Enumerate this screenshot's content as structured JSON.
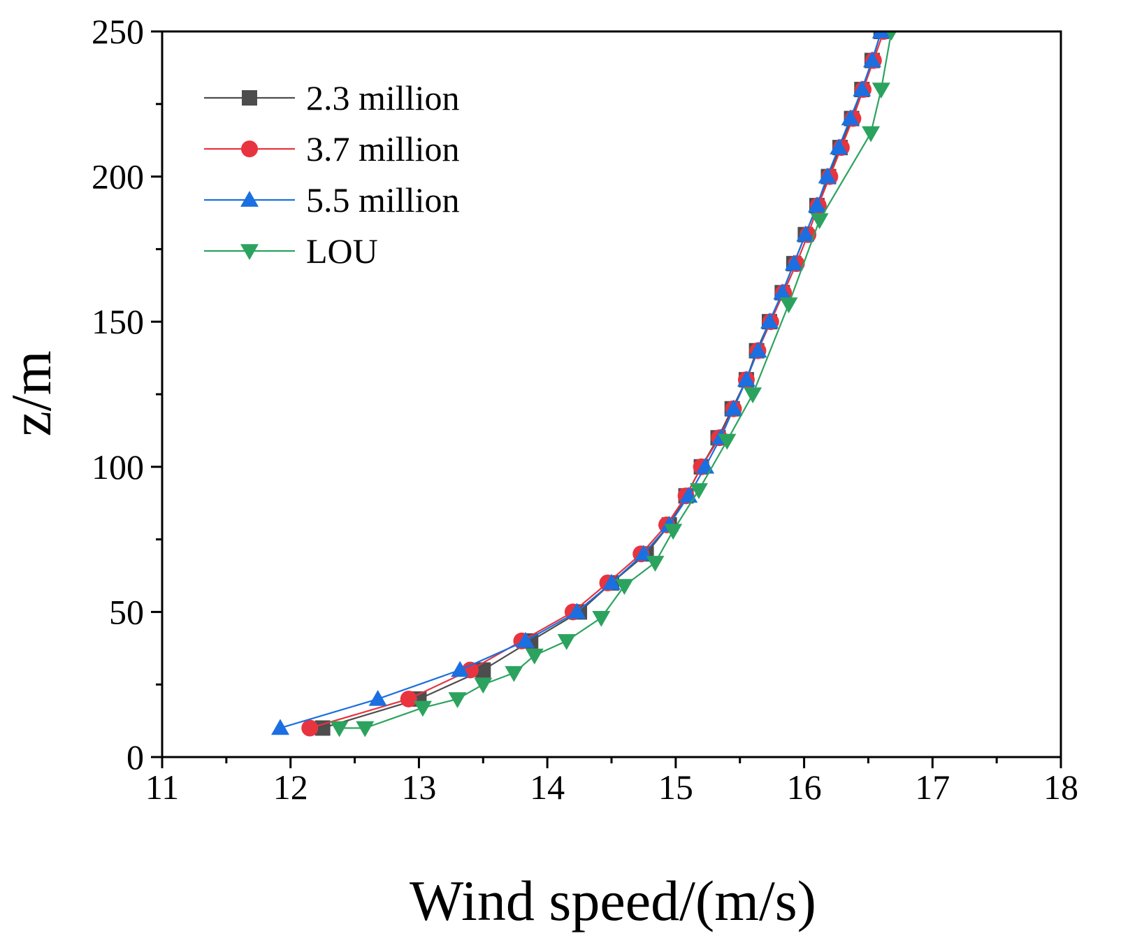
{
  "chart_data": {
    "type": "line",
    "title": "",
    "xlabel": "Wind speed/(m/s)",
    "ylabel": "z/m",
    "xlim": [
      11,
      18
    ],
    "ylim": [
      0,
      250
    ],
    "x_ticks": [
      11,
      12,
      13,
      14,
      15,
      16,
      17,
      18
    ],
    "y_ticks": [
      0,
      50,
      100,
      150,
      200,
      250
    ],
    "x_tick_labels": [
      "11",
      "12",
      "13",
      "14",
      "15",
      "16",
      "17",
      "18"
    ],
    "y_tick_labels": [
      "0",
      "50",
      "100",
      "150",
      "200",
      "250"
    ],
    "grid": false,
    "legend_position": "top-left",
    "series": [
      {
        "name": "2.3 million",
        "color": "#4d4d4d",
        "marker": "square",
        "points": [
          [
            12.25,
            10
          ],
          [
            13.0,
            20
          ],
          [
            13.5,
            30
          ],
          [
            13.87,
            40
          ],
          [
            14.25,
            50
          ],
          [
            14.5,
            60
          ],
          [
            14.77,
            70
          ],
          [
            14.95,
            80
          ],
          [
            15.08,
            90
          ],
          [
            15.2,
            100
          ],
          [
            15.33,
            110
          ],
          [
            15.44,
            120
          ],
          [
            15.55,
            130
          ],
          [
            15.63,
            140
          ],
          [
            15.73,
            150
          ],
          [
            15.83,
            160
          ],
          [
            15.92,
            170
          ],
          [
            16.01,
            180
          ],
          [
            16.1,
            190
          ],
          [
            16.19,
            200
          ],
          [
            16.28,
            210
          ],
          [
            16.37,
            220
          ],
          [
            16.45,
            230
          ],
          [
            16.53,
            240
          ],
          [
            16.6,
            250
          ]
        ]
      },
      {
        "name": "3.7 million",
        "color": "#e8343f",
        "marker": "circle",
        "points": [
          [
            12.15,
            10
          ],
          [
            12.92,
            20
          ],
          [
            13.4,
            30
          ],
          [
            13.8,
            40
          ],
          [
            14.2,
            50
          ],
          [
            14.47,
            60
          ],
          [
            14.73,
            70
          ],
          [
            14.93,
            80
          ],
          [
            15.08,
            90
          ],
          [
            15.2,
            100
          ],
          [
            15.34,
            110
          ],
          [
            15.45,
            120
          ],
          [
            15.55,
            130
          ],
          [
            15.64,
            140
          ],
          [
            15.74,
            150
          ],
          [
            15.84,
            160
          ],
          [
            15.94,
            170
          ],
          [
            16.03,
            180
          ],
          [
            16.11,
            190
          ],
          [
            16.2,
            200
          ],
          [
            16.29,
            210
          ],
          [
            16.38,
            220
          ],
          [
            16.46,
            230
          ],
          [
            16.54,
            240
          ],
          [
            16.62,
            250
          ]
        ]
      },
      {
        "name": "5.5 million",
        "color": "#1b6fe0",
        "marker": "triangle-up",
        "points": [
          [
            11.92,
            10
          ],
          [
            12.68,
            20
          ],
          [
            13.32,
            30
          ],
          [
            13.83,
            40
          ],
          [
            14.23,
            50
          ],
          [
            14.5,
            60
          ],
          [
            14.75,
            70
          ],
          [
            14.95,
            80
          ],
          [
            15.1,
            90
          ],
          [
            15.23,
            100
          ],
          [
            15.35,
            110
          ],
          [
            15.45,
            120
          ],
          [
            15.55,
            130
          ],
          [
            15.64,
            140
          ],
          [
            15.73,
            150
          ],
          [
            15.83,
            160
          ],
          [
            15.92,
            170
          ],
          [
            16.01,
            180
          ],
          [
            16.1,
            190
          ],
          [
            16.18,
            200
          ],
          [
            16.27,
            210
          ],
          [
            16.36,
            220
          ],
          [
            16.45,
            230
          ],
          [
            16.53,
            240
          ],
          [
            16.6,
            250
          ]
        ]
      },
      {
        "name": "LOU",
        "color": "#2ba35e",
        "marker": "triangle-down",
        "points": [
          [
            12.38,
            10
          ],
          [
            12.58,
            10
          ],
          [
            13.03,
            17
          ],
          [
            13.3,
            20
          ],
          [
            13.5,
            25
          ],
          [
            13.74,
            29
          ],
          [
            13.9,
            35
          ],
          [
            14.15,
            40
          ],
          [
            14.42,
            48
          ],
          [
            14.6,
            59
          ],
          [
            14.84,
            67
          ],
          [
            14.98,
            78
          ],
          [
            15.18,
            92
          ],
          [
            15.4,
            109
          ],
          [
            15.6,
            125
          ],
          [
            15.88,
            156
          ],
          [
            16.12,
            185
          ],
          [
            16.52,
            215
          ],
          [
            16.6,
            230
          ],
          [
            16.68,
            250
          ]
        ]
      }
    ]
  }
}
